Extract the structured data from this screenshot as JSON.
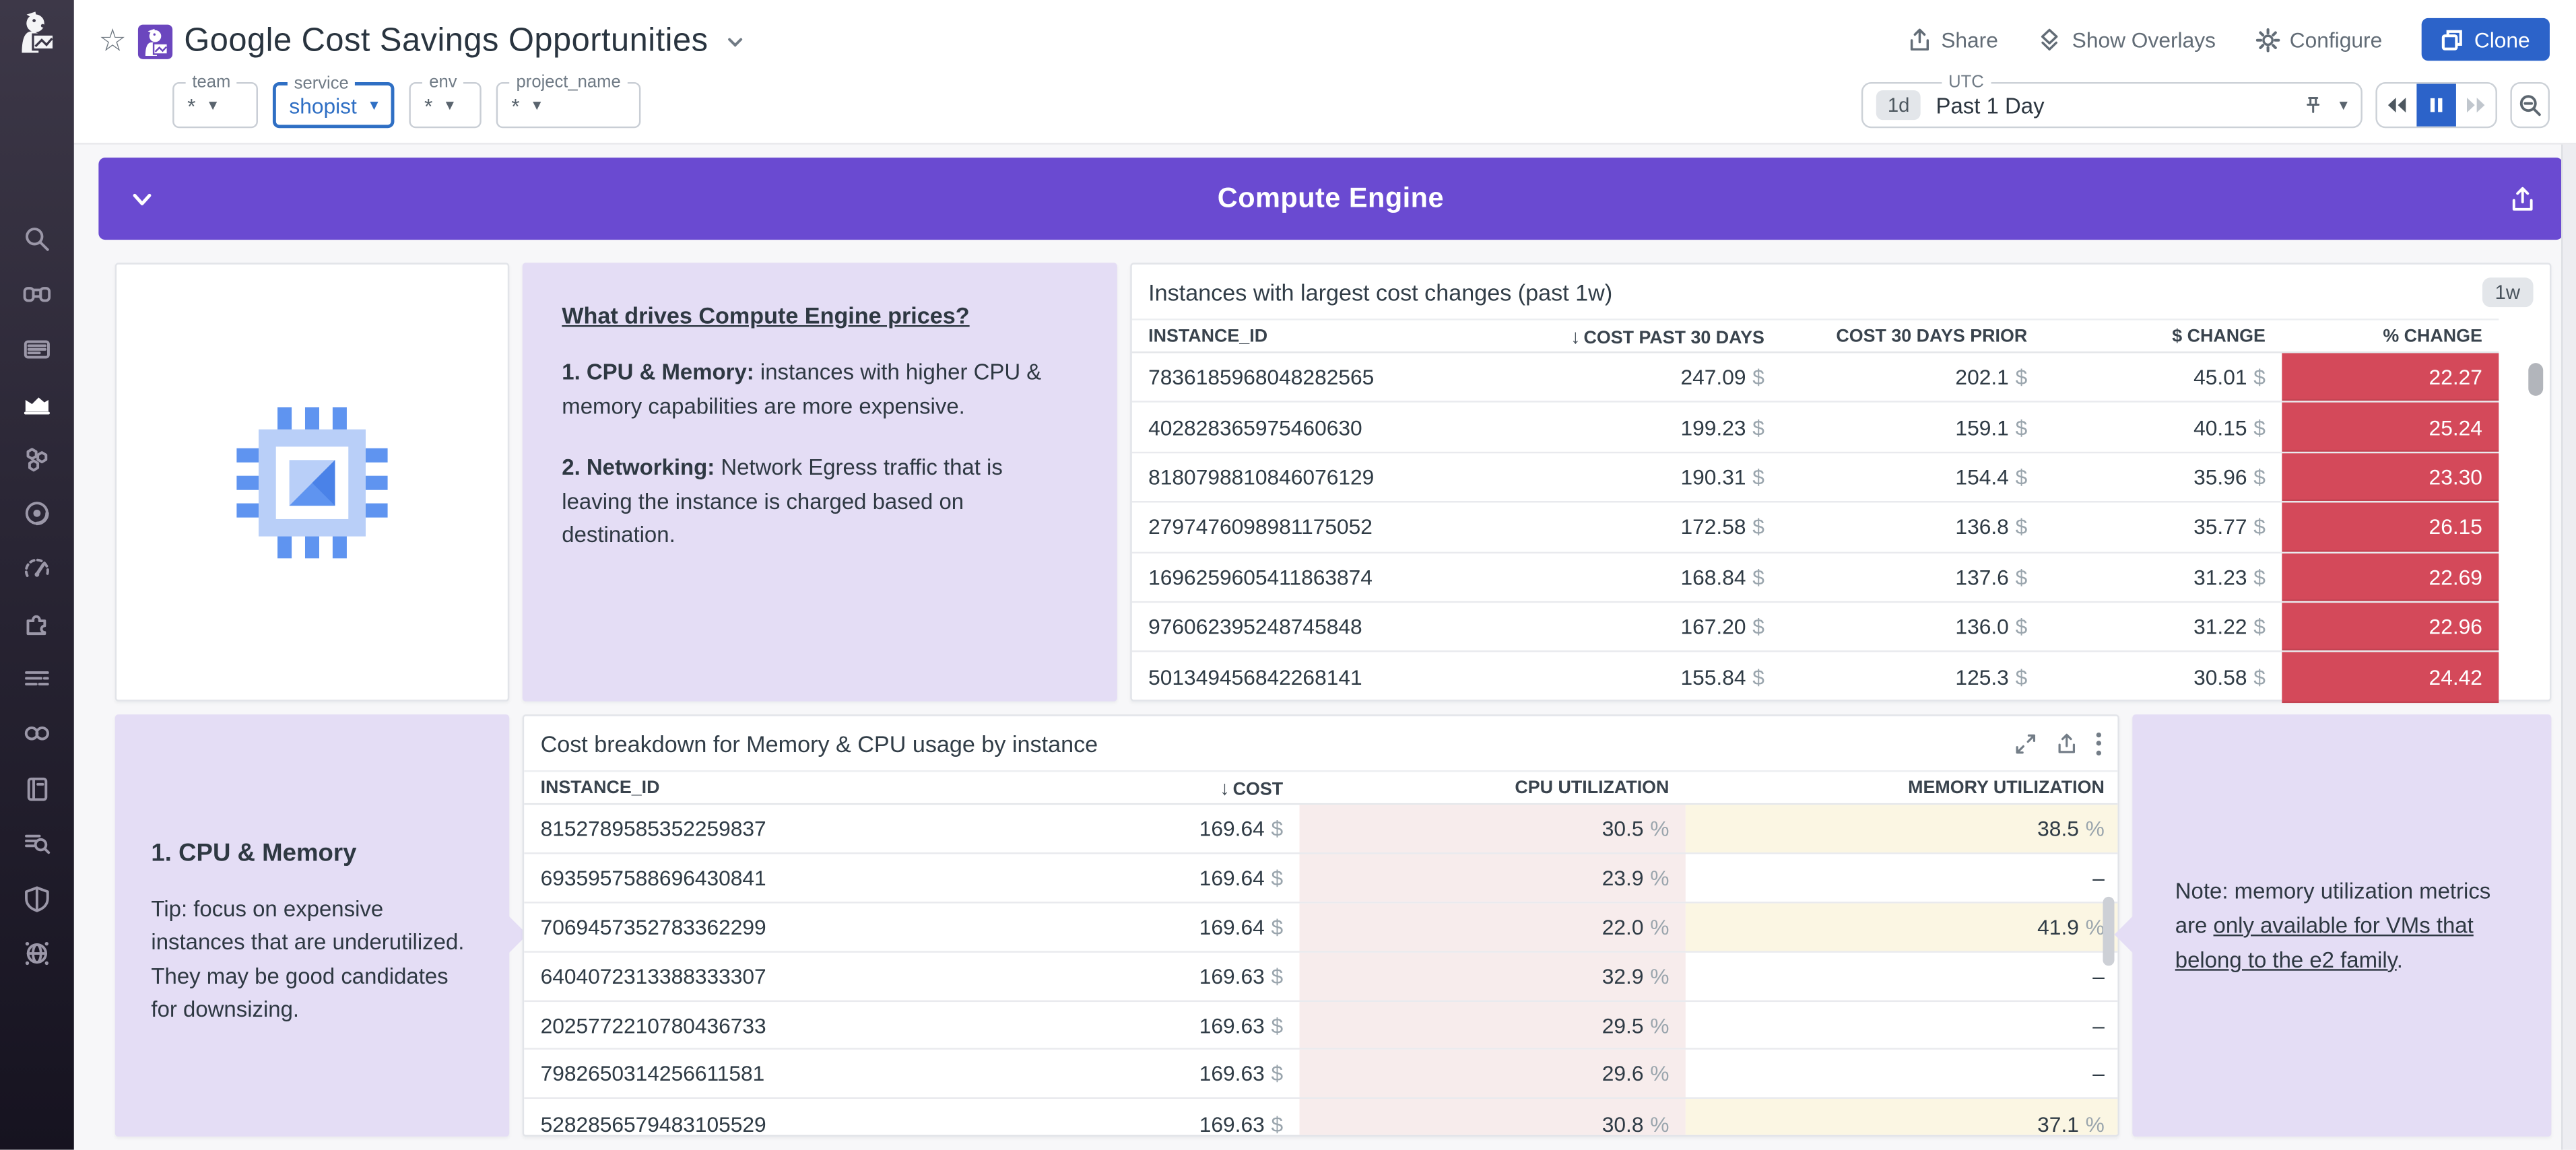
{
  "header": {
    "title": "Google Cost Savings Opportunities",
    "actions": {
      "share": "Share",
      "show_overlays": "Show Overlays",
      "configure": "Configure",
      "clone": "Clone"
    },
    "filters": [
      {
        "label": "team",
        "value": "*",
        "active": false,
        "width": 52
      },
      {
        "label": "service",
        "value": "shopist",
        "active": true,
        "width": 70
      },
      {
        "label": "env",
        "value": "*",
        "active": false,
        "width": 44
      },
      {
        "label": "project_name",
        "value": "*",
        "active": false,
        "width": 88
      }
    ],
    "time": {
      "range_short": "1d",
      "range_label": "Past 1 Day",
      "timezone": "UTC"
    }
  },
  "banner": {
    "title": "Compute Engine"
  },
  "widgets": {
    "price_drivers_note": {
      "title": "What drives Compute Engine prices?",
      "items": [
        {
          "lead": "1. CPU & Memory:",
          "text": " instances with higher CPU & memory capabilities are more expensive."
        },
        {
          "lead": "2. Networking:",
          "text": " Network Egress traffic that is leaving the instance is charged based on destination."
        }
      ]
    },
    "cost_changes_table": {
      "title": "Instances with largest cost changes (past 1w)",
      "badge": "1w",
      "columns": [
        "INSTANCE_ID",
        "COST PAST 30 DAYS",
        "COST 30 DAYS PRIOR",
        "$ CHANGE",
        "% CHANGE"
      ],
      "sorted_column": "COST PAST 30 DAYS",
      "currency_unit": "$",
      "rows": [
        {
          "instance_id": "7836185968048282565",
          "cost_past_30_days": "247.09",
          "cost_30_days_prior": "202.1",
          "dollar_change": "45.01",
          "pct_change": "22.27"
        },
        {
          "instance_id": "402828365975460630",
          "cost_past_30_days": "199.23",
          "cost_30_days_prior": "159.1",
          "dollar_change": "40.15",
          "pct_change": "25.24"
        },
        {
          "instance_id": "8180798810846076129",
          "cost_past_30_days": "190.31",
          "cost_30_days_prior": "154.4",
          "dollar_change": "35.96",
          "pct_change": "23.30"
        },
        {
          "instance_id": "2797476098981175052",
          "cost_past_30_days": "172.58",
          "cost_30_days_prior": "136.8",
          "dollar_change": "35.77",
          "pct_change": "26.15"
        },
        {
          "instance_id": "1696259605411863874",
          "cost_past_30_days": "168.84",
          "cost_30_days_prior": "137.6",
          "dollar_change": "31.23",
          "pct_change": "22.69"
        },
        {
          "instance_id": "976062395248745848",
          "cost_past_30_days": "167.20",
          "cost_30_days_prior": "136.0",
          "dollar_change": "31.22",
          "pct_change": "22.96"
        },
        {
          "instance_id": "501349456842268141",
          "cost_past_30_days": "155.84",
          "cost_30_days_prior": "125.3",
          "dollar_change": "30.58",
          "pct_change": "24.42"
        }
      ]
    },
    "cpu_memory_note": {
      "title": "1. CPU & Memory",
      "text": "Tip: focus on expensive instances that are underutilized. They may be good candidates for downsizing."
    },
    "cost_breakdown_table": {
      "title": "Cost breakdown for Memory & CPU usage by instance",
      "columns": [
        "INSTANCE_ID",
        "COST",
        "CPU UTILIZATION",
        "MEMORY UTILIZATION"
      ],
      "sorted_column": "COST",
      "currency_unit": "$",
      "percent_unit": "%",
      "missing_value": "–",
      "rows": [
        {
          "instance_id": "8152789585352259837",
          "cost": "169.64",
          "cpu_utilization": "30.5",
          "memory_utilization": "38.5"
        },
        {
          "instance_id": "6935957588696430841",
          "cost": "169.64",
          "cpu_utilization": "23.9",
          "memory_utilization": null
        },
        {
          "instance_id": "7069457352783362299",
          "cost": "169.64",
          "cpu_utilization": "22.0",
          "memory_utilization": "41.9"
        },
        {
          "instance_id": "6404072313388333307",
          "cost": "169.63",
          "cpu_utilization": "32.9",
          "memory_utilization": null
        },
        {
          "instance_id": "2025772210780436733",
          "cost": "169.63",
          "cpu_utilization": "29.5",
          "memory_utilization": null
        },
        {
          "instance_id": "7982650314256611581",
          "cost": "169.63",
          "cpu_utilization": "29.6",
          "memory_utilization": null
        },
        {
          "instance_id": "5282856579483105529",
          "cost": "169.63",
          "cpu_utilization": "30.8",
          "memory_utilization": "37.1"
        }
      ]
    },
    "memory_note": {
      "prefix": "Note: memory utilization metrics are ",
      "underlined": "only available for VMs that belong to the e2 family",
      "suffix": "."
    }
  },
  "sidebar": {
    "items": [
      {
        "name": "search",
        "active": false
      },
      {
        "name": "watchdog",
        "active": false
      },
      {
        "name": "events",
        "active": false
      },
      {
        "name": "metrics",
        "active": true
      },
      {
        "name": "infrastructure",
        "active": false
      },
      {
        "name": "apm",
        "active": false
      },
      {
        "name": "synthetics",
        "active": false
      },
      {
        "name": "integrations",
        "active": false
      },
      {
        "name": "logs",
        "active": false
      },
      {
        "name": "ci-pipelines",
        "active": false
      },
      {
        "name": "notebooks",
        "active": false
      },
      {
        "name": "log-explorer",
        "active": false
      },
      {
        "name": "security",
        "active": false
      },
      {
        "name": "network",
        "active": false
      }
    ]
  },
  "colors": {
    "accent_purple": "#6a4ad1",
    "note_lavender": "#e4ddf5",
    "danger_red": "#d4495a",
    "cpu_pink": "#f7ecec",
    "memory_yellow": "#fbf6e3",
    "action_blue": "#2c63c9"
  }
}
